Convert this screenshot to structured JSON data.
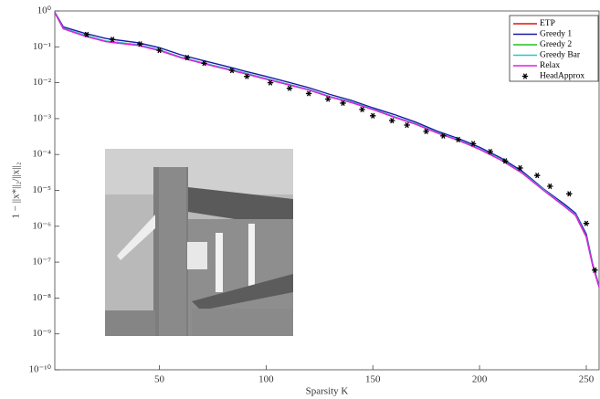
{
  "chart_data": {
    "type": "line",
    "xlabel": "Sparsity K",
    "ylabel": "1 − ||x*||₂/||x||₂",
    "xlim": [
      1,
      256
    ],
    "xticks": [
      50,
      100,
      150,
      200,
      250
    ],
    "ylim": [
      1e-10,
      1
    ],
    "log_y": true,
    "yticks": [
      {
        "value": 1,
        "label": "10⁰"
      },
      {
        "value": 0.1,
        "label": "10⁻¹"
      },
      {
        "value": 0.01,
        "label": "10⁻²"
      },
      {
        "value": 0.001,
        "label": "10⁻³"
      },
      {
        "value": 0.0001,
        "label": "10⁻⁴"
      },
      {
        "value": 1e-05,
        "label": "10⁻⁵"
      },
      {
        "value": 1e-06,
        "label": "10⁻⁶"
      },
      {
        "value": 1e-07,
        "label": "10⁻⁷"
      },
      {
        "value": 1e-08,
        "label": "10⁻⁸"
      },
      {
        "value": 1e-09,
        "label": "10⁻⁹"
      },
      {
        "value": 1e-10,
        "label": "10⁻¹⁰"
      }
    ],
    "legend": "upper right",
    "x": [
      1,
      5,
      15,
      25,
      40,
      50,
      60,
      70,
      80,
      90,
      100,
      110,
      120,
      130,
      140,
      150,
      160,
      170,
      180,
      190,
      200,
      210,
      220,
      230,
      240,
      245,
      250,
      253,
      256
    ],
    "series": [
      {
        "name": "ETP",
        "color": "#e01010",
        "values": [
          0.9,
          0.32,
          0.2,
          0.14,
          0.11,
          0.079,
          0.05,
          0.035,
          0.025,
          0.018,
          0.0126,
          0.0089,
          0.0063,
          0.004,
          0.0028,
          0.0018,
          0.0011,
          0.0007,
          0.0004,
          0.00025,
          0.00014,
          7e-05,
          3e-05,
          1e-05,
          3.5e-06,
          2e-06,
          5e-07,
          8e-08,
          2e-08
        ]
      },
      {
        "name": "Greedy 1",
        "color": "#1a1aa8",
        "values": [
          0.92,
          0.36,
          0.24,
          0.17,
          0.13,
          0.095,
          0.06,
          0.042,
          0.03,
          0.021,
          0.015,
          0.0105,
          0.0073,
          0.0047,
          0.0032,
          0.002,
          0.0013,
          0.0008,
          0.00045,
          0.00028,
          0.00016,
          8e-05,
          3.4e-05,
          1.1e-05,
          4e-06,
          2.3e-06,
          6e-07,
          9e-08,
          2.2e-08
        ]
      },
      {
        "name": "Greedy 2",
        "color": "#20c020",
        "values": [
          0.9,
          0.33,
          0.21,
          0.145,
          0.115,
          0.082,
          0.052,
          0.036,
          0.026,
          0.0187,
          0.013,
          0.0092,
          0.0065,
          0.0041,
          0.0029,
          0.00185,
          0.00113,
          0.00072,
          0.00041,
          0.00026,
          0.000145,
          7.2e-05,
          3.1e-05,
          1.05e-05,
          3.6e-06,
          2.1e-06,
          5.2e-07,
          8.3e-08,
          2.1e-08
        ]
      },
      {
        "name": "Greedy Bar",
        "color": "#20c8d8",
        "values": [
          0.9,
          0.33,
          0.21,
          0.145,
          0.115,
          0.082,
          0.052,
          0.036,
          0.026,
          0.0187,
          0.013,
          0.0092,
          0.0065,
          0.0041,
          0.0029,
          0.00185,
          0.00113,
          0.00072,
          0.00041,
          0.00026,
          0.000145,
          7.2e-05,
          3.1e-05,
          1.05e-05,
          3.6e-06,
          2.1e-06,
          5.2e-07,
          8.3e-08,
          2.1e-08
        ]
      },
      {
        "name": "Relax",
        "color": "#e020e0",
        "values": [
          0.9,
          0.32,
          0.2,
          0.14,
          0.11,
          0.079,
          0.05,
          0.035,
          0.025,
          0.018,
          0.0126,
          0.0089,
          0.0063,
          0.004,
          0.0028,
          0.0018,
          0.0011,
          0.0007,
          0.0004,
          0.00025,
          0.00014,
          7e-05,
          3e-05,
          1e-05,
          3.5e-06,
          2e-06,
          5e-07,
          8e-08,
          2e-08
        ]
      },
      {
        "name": "HeadApprox",
        "color": "#000000",
        "marker": "asterisk",
        "x": [
          16,
          28,
          41,
          50,
          63,
          71,
          84,
          91,
          102,
          111,
          120,
          129,
          136,
          145,
          150,
          159,
          166,
          175,
          183,
          190,
          197,
          205,
          212,
          219,
          227,
          233,
          242,
          250,
          254
        ],
        "values": [
          0.22,
          0.16,
          0.12,
          0.08,
          0.05,
          0.035,
          0.022,
          0.015,
          0.01,
          0.007,
          0.005,
          0.0035,
          0.0027,
          0.0018,
          0.0012,
          0.00088,
          0.00066,
          0.00044,
          0.00033,
          0.00026,
          0.0002,
          0.00012,
          6.6e-05,
          4.2e-05,
          2.6e-05,
          1.3e-05,
          8e-06,
          1.2e-06,
          6e-08
        ]
      }
    ]
  }
}
